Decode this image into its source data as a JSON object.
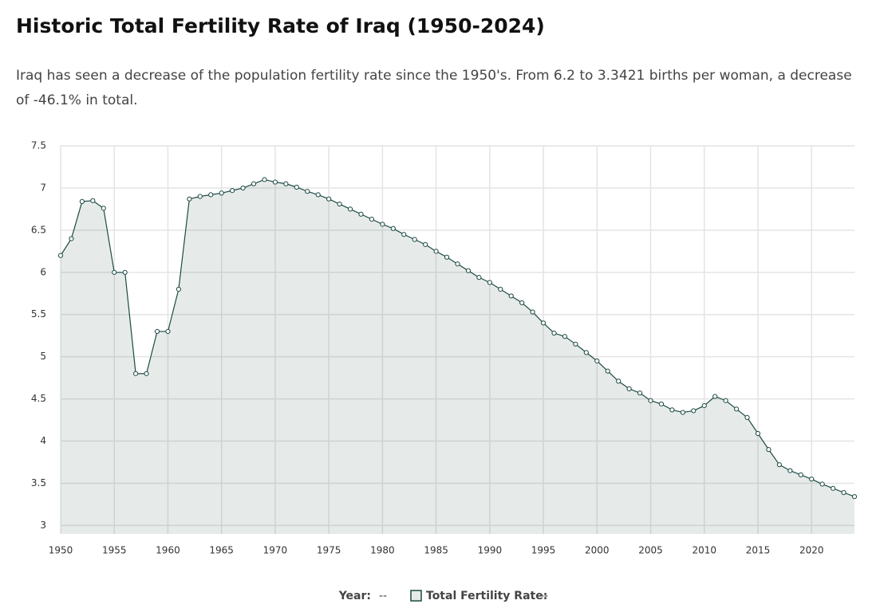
{
  "chart_data": {
    "type": "line",
    "title": "Historic Total Fertility Rate of Iraq (1950-2024)",
    "subtitle": "Iraq has seen a decrease of the population fertility rate since the 1950's. From 6.2 to 3.3421 births per woman, a decrease of -46.1% in total.",
    "x": [
      1950,
      1951,
      1952,
      1953,
      1954,
      1955,
      1956,
      1957,
      1958,
      1959,
      1960,
      1961,
      1962,
      1963,
      1964,
      1965,
      1966,
      1967,
      1968,
      1969,
      1970,
      1971,
      1972,
      1973,
      1974,
      1975,
      1976,
      1977,
      1978,
      1979,
      1980,
      1981,
      1982,
      1983,
      1984,
      1985,
      1986,
      1987,
      1988,
      1989,
      1990,
      1991,
      1992,
      1993,
      1994,
      1995,
      1996,
      1997,
      1998,
      1999,
      2000,
      2001,
      2002,
      2003,
      2004,
      2005,
      2006,
      2007,
      2008,
      2009,
      2010,
      2011,
      2012,
      2013,
      2014,
      2015,
      2016,
      2017,
      2018,
      2019,
      2020,
      2021,
      2022,
      2023,
      2024
    ],
    "series": [
      {
        "name": "Total Fertility Rate:",
        "color": "#1d4a44",
        "values": [
          6.2,
          6.4,
          6.84,
          6.85,
          6.76,
          6.0,
          6.0,
          4.8,
          4.8,
          5.3,
          5.3,
          5.8,
          6.87,
          6.9,
          6.92,
          6.94,
          6.97,
          7.0,
          7.05,
          7.1,
          7.07,
          7.05,
          7.01,
          6.96,
          6.92,
          6.87,
          6.81,
          6.75,
          6.69,
          6.63,
          6.57,
          6.52,
          6.45,
          6.39,
          6.33,
          6.25,
          6.18,
          6.1,
          6.02,
          5.94,
          5.88,
          5.8,
          5.72,
          5.64,
          5.53,
          5.4,
          5.28,
          5.24,
          5.15,
          5.05,
          4.95,
          4.83,
          4.71,
          4.62,
          4.57,
          4.48,
          4.44,
          4.37,
          4.34,
          4.36,
          4.42,
          4.53,
          4.48,
          4.38,
          4.28,
          4.09,
          3.9,
          3.72,
          3.65,
          3.6,
          3.55,
          3.49,
          3.44,
          3.39,
          3.3421
        ]
      }
    ],
    "xlim": [
      1950,
      2024
    ],
    "xticks": [
      1950,
      1955,
      1960,
      1965,
      1970,
      1975,
      1980,
      1985,
      1990,
      1995,
      2000,
      2005,
      2010,
      2015,
      2020
    ],
    "ylim": [
      2.9,
      7.5
    ],
    "yticks": [
      3,
      3.5,
      4,
      4.5,
      5,
      5.5,
      6,
      6.5,
      7,
      7.5
    ],
    "grid": true,
    "legend": {
      "x_label": "Year:",
      "placeholder": "--"
    }
  }
}
